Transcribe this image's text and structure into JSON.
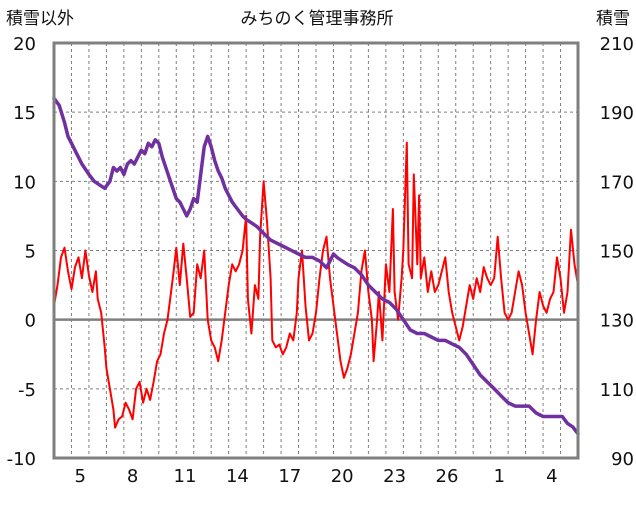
{
  "chart_data": {
    "type": "line",
    "title": "みちのく管理事務所",
    "left_axis_label": "積雪以外",
    "right_axis_label": "積雪",
    "left_ylim": [
      -10,
      20
    ],
    "right_ylim": [
      90,
      210
    ],
    "left_ticks": [
      "20",
      "15",
      "10",
      "5",
      "0",
      "-5",
      "-10"
    ],
    "right_ticks": [
      "210",
      "190",
      "170",
      "150",
      "130",
      "110",
      "90"
    ],
    "x_tick_labels": [
      "5",
      "8",
      "11",
      "14",
      "17",
      "20",
      "23",
      "26",
      "1",
      "4"
    ],
    "x_range_days": [
      0,
      30
    ],
    "x_label_days": [
      1.5,
      4.5,
      7.5,
      10.5,
      13.5,
      16.5,
      19.5,
      22.5,
      25.5,
      28.5
    ],
    "grid": true,
    "colors": {
      "temperature": "#ff0000",
      "snow_depth": "#7030a0",
      "frame": "#7f7f7f",
      "grid": "#7f7f7f"
    },
    "series": [
      {
        "axis": "left",
        "color": "#ff0000",
        "points": [
          [
            0.0,
            1.0
          ],
          [
            0.2,
            2.5
          ],
          [
            0.4,
            4.5
          ],
          [
            0.6,
            5.2
          ],
          [
            0.8,
            3.5
          ],
          [
            1.0,
            2.2
          ],
          [
            1.2,
            3.8
          ],
          [
            1.4,
            4.5
          ],
          [
            1.6,
            3.0
          ],
          [
            1.8,
            5.0
          ],
          [
            2.0,
            3.2
          ],
          [
            2.2,
            2.0
          ],
          [
            2.4,
            3.5
          ],
          [
            2.5,
            1.5
          ],
          [
            2.7,
            0.5
          ],
          [
            2.9,
            -2.0
          ],
          [
            3.0,
            -3.5
          ],
          [
            3.2,
            -5.0
          ],
          [
            3.4,
            -6.5
          ],
          [
            3.5,
            -7.8
          ],
          [
            3.7,
            -7.2
          ],
          [
            3.9,
            -7.0
          ],
          [
            4.1,
            -6.0
          ],
          [
            4.3,
            -6.5
          ],
          [
            4.5,
            -7.2
          ],
          [
            4.7,
            -5.0
          ],
          [
            4.9,
            -4.5
          ],
          [
            5.1,
            -6.0
          ],
          [
            5.3,
            -5.0
          ],
          [
            5.5,
            -5.8
          ],
          [
            5.7,
            -4.5
          ],
          [
            5.9,
            -3.0
          ],
          [
            6.1,
            -2.5
          ],
          [
            6.3,
            -1.0
          ],
          [
            6.5,
            0.0
          ],
          [
            6.8,
            3.0
          ],
          [
            7.0,
            5.2
          ],
          [
            7.2,
            2.5
          ],
          [
            7.4,
            5.5
          ],
          [
            7.6,
            3.0
          ],
          [
            7.8,
            0.2
          ],
          [
            8.0,
            0.5
          ],
          [
            8.2,
            4.0
          ],
          [
            8.4,
            3.0
          ],
          [
            8.6,
            5.0
          ],
          [
            8.8,
            0.0
          ],
          [
            9.0,
            -1.5
          ],
          [
            9.2,
            -2.0
          ],
          [
            9.4,
            -3.0
          ],
          [
            9.6,
            -1.5
          ],
          [
            9.8,
            0.5
          ],
          [
            10.0,
            2.5
          ],
          [
            10.2,
            4.0
          ],
          [
            10.4,
            3.5
          ],
          [
            10.6,
            4.0
          ],
          [
            10.8,
            5.0
          ],
          [
            11.0,
            7.5
          ],
          [
            11.1,
            1.5
          ],
          [
            11.3,
            -1.0
          ],
          [
            11.5,
            2.5
          ],
          [
            11.7,
            1.5
          ],
          [
            11.8,
            6.0
          ],
          [
            12.0,
            10.0
          ],
          [
            12.2,
            7.0
          ],
          [
            12.4,
            3.0
          ],
          [
            12.5,
            -1.5
          ],
          [
            12.7,
            -2.0
          ],
          [
            12.9,
            -1.8
          ],
          [
            13.1,
            -2.5
          ],
          [
            13.3,
            -2.0
          ],
          [
            13.5,
            -1.0
          ],
          [
            13.7,
            -1.5
          ],
          [
            13.9,
            0.5
          ],
          [
            14.0,
            3.0
          ],
          [
            14.2,
            5.0
          ],
          [
            14.4,
            1.0
          ],
          [
            14.6,
            -1.5
          ],
          [
            14.8,
            -1.0
          ],
          [
            15.0,
            0.5
          ],
          [
            15.2,
            3.0
          ],
          [
            15.4,
            5.0
          ],
          [
            15.6,
            6.0
          ],
          [
            15.8,
            3.0
          ],
          [
            16.0,
            1.0
          ],
          [
            16.2,
            -1.0
          ],
          [
            16.4,
            -3.0
          ],
          [
            16.6,
            -4.2
          ],
          [
            16.8,
            -3.5
          ],
          [
            17.0,
            -2.5
          ],
          [
            17.2,
            -1.0
          ],
          [
            17.4,
            0.5
          ],
          [
            17.6,
            3.5
          ],
          [
            17.8,
            5.0
          ],
          [
            18.0,
            2.0
          ],
          [
            18.2,
            0.0
          ],
          [
            18.3,
            -3.0
          ],
          [
            18.5,
            0.0
          ],
          [
            18.6,
            2.0
          ],
          [
            18.8,
            -1.5
          ],
          [
            19.0,
            4.0
          ],
          [
            19.2,
            2.0
          ],
          [
            19.4,
            8.0
          ],
          [
            19.5,
            2.0
          ],
          [
            19.7,
            0.0
          ],
          [
            19.9,
            3.0
          ],
          [
            20.0,
            5.0
          ],
          [
            20.2,
            12.8
          ],
          [
            20.3,
            4.0
          ],
          [
            20.5,
            3.0
          ],
          [
            20.6,
            10.5
          ],
          [
            20.8,
            4.0
          ],
          [
            20.9,
            9.0
          ],
          [
            21.0,
            3.0
          ],
          [
            21.2,
            4.5
          ],
          [
            21.4,
            2.0
          ],
          [
            21.6,
            3.5
          ],
          [
            21.8,
            2.0
          ],
          [
            22.0,
            2.5
          ],
          [
            22.2,
            3.5
          ],
          [
            22.4,
            4.5
          ],
          [
            22.6,
            2.0
          ],
          [
            22.8,
            0.5
          ],
          [
            23.0,
            -0.5
          ],
          [
            23.2,
            -1.5
          ],
          [
            23.4,
            -0.5
          ],
          [
            23.6,
            1.0
          ],
          [
            23.8,
            2.5
          ],
          [
            24.0,
            1.5
          ],
          [
            24.2,
            3.0
          ],
          [
            24.4,
            2.0
          ],
          [
            24.6,
            3.8
          ],
          [
            24.8,
            3.0
          ],
          [
            25.0,
            2.5
          ],
          [
            25.2,
            3.0
          ],
          [
            25.4,
            6.0
          ],
          [
            25.6,
            3.0
          ],
          [
            25.8,
            0.5
          ],
          [
            26.0,
            0.0
          ],
          [
            26.2,
            0.5
          ],
          [
            26.4,
            2.0
          ],
          [
            26.6,
            3.5
          ],
          [
            26.8,
            2.5
          ],
          [
            27.0,
            0.5
          ],
          [
            27.2,
            -1.0
          ],
          [
            27.4,
            -2.5
          ],
          [
            27.6,
            0.0
          ],
          [
            27.8,
            2.0
          ],
          [
            28.0,
            1.0
          ],
          [
            28.2,
            0.5
          ],
          [
            28.4,
            1.5
          ],
          [
            28.6,
            2.0
          ],
          [
            28.8,
            4.5
          ],
          [
            29.0,
            3.0
          ],
          [
            29.2,
            0.5
          ],
          [
            29.4,
            2.0
          ],
          [
            29.6,
            6.5
          ],
          [
            29.8,
            4.0
          ],
          [
            30.0,
            2.5
          ]
        ]
      },
      {
        "axis": "right",
        "color": "#7030a0",
        "points": [
          [
            0.0,
            194
          ],
          [
            0.3,
            192
          ],
          [
            0.6,
            187
          ],
          [
            0.8,
            183
          ],
          [
            1.0,
            181
          ],
          [
            1.3,
            178
          ],
          [
            1.6,
            175
          ],
          [
            2.0,
            172
          ],
          [
            2.3,
            170
          ],
          [
            2.6,
            169
          ],
          [
            2.9,
            168
          ],
          [
            3.2,
            170
          ],
          [
            3.4,
            174
          ],
          [
            3.6,
            173
          ],
          [
            3.8,
            174
          ],
          [
            4.0,
            172
          ],
          [
            4.2,
            175
          ],
          [
            4.4,
            176
          ],
          [
            4.6,
            175
          ],
          [
            4.8,
            177
          ],
          [
            5.0,
            179
          ],
          [
            5.2,
            178
          ],
          [
            5.4,
            181
          ],
          [
            5.6,
            180
          ],
          [
            5.8,
            182
          ],
          [
            6.0,
            181
          ],
          [
            6.2,
            177
          ],
          [
            6.4,
            174
          ],
          [
            6.6,
            171
          ],
          [
            6.8,
            168
          ],
          [
            7.0,
            165
          ],
          [
            7.2,
            164
          ],
          [
            7.4,
            162
          ],
          [
            7.6,
            160
          ],
          [
            7.8,
            162
          ],
          [
            8.0,
            165
          ],
          [
            8.2,
            164
          ],
          [
            8.4,
            172
          ],
          [
            8.6,
            180
          ],
          [
            8.8,
            183
          ],
          [
            9.0,
            180
          ],
          [
            9.2,
            176
          ],
          [
            9.4,
            173
          ],
          [
            9.6,
            171
          ],
          [
            9.8,
            168
          ],
          [
            10.0,
            166
          ],
          [
            10.2,
            164
          ],
          [
            10.5,
            162
          ],
          [
            10.8,
            160
          ],
          [
            11.0,
            159
          ],
          [
            11.3,
            158
          ],
          [
            11.6,
            157
          ],
          [
            12.0,
            155
          ],
          [
            12.4,
            153
          ],
          [
            12.8,
            152
          ],
          [
            13.2,
            151
          ],
          [
            13.6,
            150
          ],
          [
            14.0,
            149
          ],
          [
            14.4,
            148
          ],
          [
            14.8,
            148
          ],
          [
            15.2,
            147
          ],
          [
            15.6,
            145
          ],
          [
            15.8,
            147
          ],
          [
            16.0,
            149
          ],
          [
            16.2,
            148
          ],
          [
            16.5,
            147
          ],
          [
            16.8,
            146
          ],
          [
            17.2,
            145
          ],
          [
            17.6,
            143
          ],
          [
            18.0,
            140
          ],
          [
            18.4,
            138
          ],
          [
            18.8,
            136
          ],
          [
            19.2,
            135
          ],
          [
            19.6,
            133
          ],
          [
            20.0,
            130
          ],
          [
            20.4,
            127
          ],
          [
            20.8,
            126
          ],
          [
            21.2,
            126
          ],
          [
            21.6,
            125
          ],
          [
            22.0,
            124
          ],
          [
            22.4,
            124
          ],
          [
            22.8,
            123
          ],
          [
            23.2,
            122
          ],
          [
            23.6,
            120
          ],
          [
            24.0,
            117
          ],
          [
            24.4,
            114
          ],
          [
            24.8,
            112
          ],
          [
            25.2,
            110
          ],
          [
            25.6,
            108
          ],
          [
            26.0,
            106
          ],
          [
            26.4,
            105
          ],
          [
            26.8,
            105
          ],
          [
            27.2,
            105
          ],
          [
            27.6,
            103
          ],
          [
            28.0,
            102
          ],
          [
            28.4,
            102
          ],
          [
            28.8,
            102
          ],
          [
            29.1,
            102
          ],
          [
            29.4,
            100
          ],
          [
            29.7,
            99
          ],
          [
            30.0,
            97
          ]
        ]
      }
    ]
  }
}
